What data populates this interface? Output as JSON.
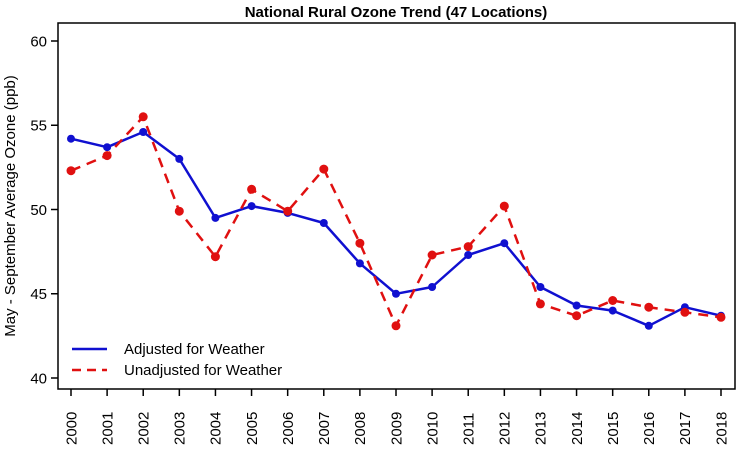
{
  "chart_data": {
    "type": "line",
    "title": "National Rural Ozone Trend (47 Locations)",
    "xlabel": "",
    "ylabel": "May - September Average Ozone (ppb)",
    "x": [
      2000,
      2001,
      2002,
      2003,
      2004,
      2005,
      2006,
      2007,
      2008,
      2009,
      2010,
      2011,
      2012,
      2013,
      2014,
      2015,
      2016,
      2017,
      2018
    ],
    "yticks": [
      40,
      45,
      50,
      55,
      60
    ],
    "ylim": [
      39.3,
      61.1
    ],
    "grid": false,
    "legend_position": "bottom-left-inside",
    "series": [
      {
        "name": "Adjusted for Weather",
        "color": "#1010d0",
        "line_style": "solid",
        "marker": "circle",
        "values": [
          54.2,
          53.7,
          54.6,
          53.0,
          49.5,
          50.2,
          49.8,
          49.2,
          46.8,
          45.0,
          45.4,
          47.3,
          48.0,
          45.4,
          44.3,
          44.0,
          43.1,
          44.2,
          43.7
        ]
      },
      {
        "name": "Unadjusted for Weather",
        "color": "#e01010",
        "line_style": "dashed",
        "marker": "circle",
        "values": [
          52.3,
          53.2,
          55.5,
          49.9,
          47.2,
          51.2,
          49.9,
          52.4,
          48.0,
          43.1,
          47.3,
          47.8,
          50.2,
          44.4,
          43.7,
          44.6,
          44.2,
          43.9,
          43.6
        ]
      }
    ]
  }
}
